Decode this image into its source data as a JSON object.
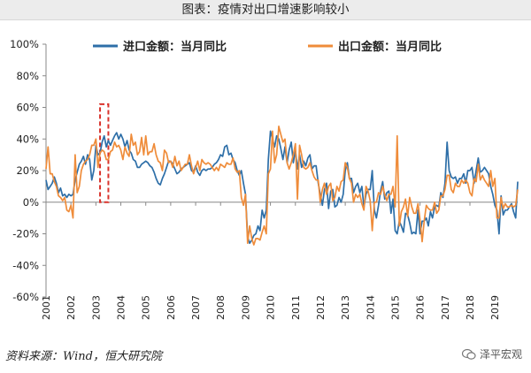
{
  "title": "图表：疫情对出口增速影响较小",
  "source": "资料来源：Wind，恒大研究院",
  "watermark": "泽平宏观",
  "colors": {
    "import": "#2e6fa8",
    "export": "#ef8c3a",
    "highlight": "#d9322b",
    "axis": "#888888"
  },
  "chart_data": {
    "type": "line",
    "x_start": "2001-01",
    "x_end": "2019-12",
    "frequency": "monthly",
    "ylim": [
      -60,
      100
    ],
    "yticks": [
      "-60%",
      "-40%",
      "-20%",
      "0%",
      "20%",
      "40%",
      "60%",
      "80%",
      "100%"
    ],
    "ytick_values": [
      -60,
      -40,
      -20,
      0,
      20,
      40,
      60,
      80,
      100
    ],
    "xticks": [
      "2001",
      "2002",
      "2003",
      "2004",
      "2005",
      "2006",
      "2007",
      "2008",
      "2009",
      "2010",
      "2011",
      "2012",
      "2013",
      "2014",
      "2015",
      "2016",
      "2017",
      "2018",
      "2019"
    ],
    "legend_position": "top",
    "grid": false,
    "highlight_range": {
      "x_from": "2003-03",
      "x_to": "2003-07",
      "y_from": 0,
      "y_to": 62
    },
    "series": [
      {
        "name": "进口金额：当月同比",
        "values": [
          14,
          8,
          10,
          12,
          16,
          12,
          6,
          9,
          4,
          5,
          3,
          5,
          4,
          5,
          14,
          19,
          24,
          26,
          29,
          24,
          30,
          27,
          14,
          20,
          36,
          30,
          31,
          38,
          42,
          35,
          39,
          36,
          39,
          42,
          44,
          40,
          43,
          40,
          35,
          39,
          33,
          31,
          27,
          26,
          22,
          22,
          24,
          25,
          26,
          25,
          23,
          22,
          19,
          15,
          12,
          11,
          15,
          18,
          22,
          26,
          26,
          24,
          21,
          18,
          19,
          21,
          22,
          23,
          24,
          25,
          20,
          19,
          23,
          19,
          17,
          20,
          21,
          20,
          21,
          21,
          22,
          24,
          25,
          27,
          30,
          29,
          35,
          36,
          30,
          31,
          27,
          25,
          20,
          17,
          20,
          12,
          5,
          -22,
          -26,
          -24,
          -21,
          -20,
          -15,
          -18,
          -5,
          -10,
          -5,
          27,
          45,
          40,
          35,
          42,
          40,
          34,
          27,
          35,
          25,
          33,
          38,
          25,
          33,
          21,
          30,
          22,
          26,
          23,
          28,
          30,
          21,
          23,
          23,
          12,
          5,
          -2,
          8,
          12,
          -4,
          7,
          8,
          -3,
          -2,
          3,
          0,
          5,
          20,
          25,
          15,
          15,
          6,
          10,
          12,
          6,
          10,
          -3,
          5,
          8,
          8,
          20,
          -5,
          -10,
          -2,
          7,
          13,
          2,
          6,
          7,
          -7,
          2,
          -18,
          -20,
          -12,
          -15,
          -19,
          -7,
          -8,
          -13,
          -20,
          -19,
          -20,
          -5,
          -20,
          -12,
          -12,
          -10,
          -15,
          -6,
          -10,
          -3,
          -2,
          -3,
          6,
          3,
          12,
          38,
          20,
          16,
          15,
          16,
          12,
          15,
          15,
          18,
          12,
          20,
          20,
          22,
          12,
          20,
          28,
          19,
          20,
          22,
          20,
          18,
          10,
          5,
          -2,
          -5,
          -20,
          4,
          -8,
          -5,
          -5,
          -3,
          -1,
          -6,
          -10,
          13
        ]
      },
      {
        "name": "出口金额：当月同比",
        "values": [
          21,
          35,
          18,
          18,
          13,
          10,
          4,
          3,
          1,
          3,
          -5,
          -6,
          -2,
          -10,
          30,
          6,
          10,
          20,
          24,
          26,
          27,
          30,
          36,
          36,
          40,
          22,
          31,
          33,
          32,
          27,
          27,
          32,
          33,
          38,
          35,
          36,
          33,
          27,
          35,
          31,
          29,
          43,
          36,
          38,
          30,
          32,
          41,
          30,
          42,
          30,
          32,
          32,
          37,
          30,
          26,
          25,
          20,
          33,
          31,
          25,
          26,
          22,
          29,
          23,
          26,
          20,
          22,
          24,
          24,
          30,
          23,
          18,
          22,
          26,
          20,
          27,
          25,
          24,
          25,
          24,
          22,
          20,
          22,
          20,
          24,
          23,
          22,
          25,
          24,
          24,
          28,
          21,
          19,
          20,
          3,
          -2,
          5,
          -26,
          -15,
          -23,
          -27,
          -23,
          -23,
          -24,
          -19,
          -15,
          -20,
          18,
          21,
          45,
          25,
          30,
          48,
          43,
          38,
          40,
          25,
          21,
          25,
          30,
          37,
          2,
          36,
          30,
          22,
          21,
          22,
          25,
          20,
          16,
          14,
          14,
          0,
          8,
          12,
          5,
          10,
          12,
          1,
          3,
          10,
          7,
          13,
          14,
          25,
          22,
          15,
          12,
          0,
          5,
          3,
          5,
          -1,
          -5,
          10,
          7,
          1,
          -18,
          0,
          0,
          6,
          5,
          10,
          5,
          1,
          5,
          5,
          10,
          -3,
          42,
          -15,
          -6,
          -3,
          2,
          -9,
          3,
          -3,
          -7,
          -7,
          -1,
          -11,
          -25,
          -12,
          -2,
          -4,
          -5,
          -5,
          0,
          -7,
          -5,
          4,
          4,
          8,
          17,
          17,
          8,
          6,
          12,
          10,
          10,
          14,
          12,
          14,
          12,
          6,
          4,
          15,
          13,
          24,
          14,
          17,
          14,
          12,
          10,
          20,
          10,
          15,
          -10,
          -10,
          3,
          -4,
          -1,
          -3,
          -3,
          -2,
          -3,
          -2,
          8
        ]
      }
    ]
  }
}
